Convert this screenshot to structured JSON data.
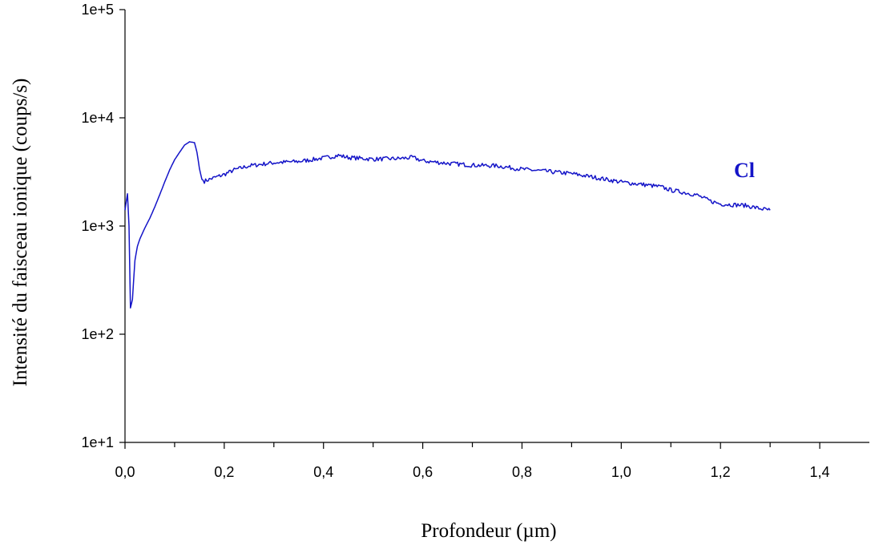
{
  "chart_data": {
    "type": "line",
    "title": "",
    "xlabel": "Profondeur (µm)",
    "ylabel": "Intensité du faisceau ionique (coups/s)",
    "x_scale": "linear",
    "y_scale": "log",
    "xlim": [
      0.0,
      1.5
    ],
    "ylim": [
      10,
      100000
    ],
    "x_ticks": [
      0.0,
      0.2,
      0.4,
      0.6,
      0.8,
      1.0,
      1.2,
      1.4
    ],
    "x_tick_labels": [
      "0,0",
      "0,2",
      "0,4",
      "0,6",
      "0,8",
      "1,0",
      "1,2",
      "1,4"
    ],
    "y_ticks": [
      10,
      100,
      1000,
      10000,
      100000
    ],
    "y_tick_labels": [
      "1e+1",
      "1e+2",
      "1e+3",
      "1e+4",
      "1e+5"
    ],
    "grid": false,
    "series": [
      {
        "name": "Cl",
        "color": "#1414c8",
        "points": [
          [
            0.0,
            1400
          ],
          [
            0.005,
            1990
          ],
          [
            0.008,
            1000
          ],
          [
            0.011,
            175
          ],
          [
            0.015,
            210
          ],
          [
            0.02,
            480
          ],
          [
            0.025,
            650
          ],
          [
            0.03,
            760
          ],
          [
            0.04,
            960
          ],
          [
            0.05,
            1180
          ],
          [
            0.06,
            1500
          ],
          [
            0.07,
            1950
          ],
          [
            0.08,
            2550
          ],
          [
            0.09,
            3300
          ],
          [
            0.1,
            4100
          ],
          [
            0.11,
            4800
          ],
          [
            0.12,
            5600
          ],
          [
            0.13,
            6000
          ],
          [
            0.14,
            5900
          ],
          [
            0.145,
            4800
          ],
          [
            0.15,
            3400
          ],
          [
            0.155,
            2700
          ],
          [
            0.16,
            2600
          ],
          [
            0.18,
            2800
          ],
          [
            0.2,
            3000
          ],
          [
            0.22,
            3300
          ],
          [
            0.25,
            3600
          ],
          [
            0.3,
            3850
          ],
          [
            0.35,
            3950
          ],
          [
            0.4,
            4250
          ],
          [
            0.43,
            4500
          ],
          [
            0.45,
            4300
          ],
          [
            0.5,
            4150
          ],
          [
            0.55,
            4200
          ],
          [
            0.58,
            4300
          ],
          [
            0.6,
            4000
          ],
          [
            0.65,
            3800
          ],
          [
            0.7,
            3650
          ],
          [
            0.75,
            3600
          ],
          [
            0.8,
            3350
          ],
          [
            0.85,
            3200
          ],
          [
            0.9,
            3050
          ],
          [
            0.95,
            2800
          ],
          [
            1.0,
            2550
          ],
          [
            1.05,
            2400
          ],
          [
            1.08,
            2300
          ],
          [
            1.1,
            2150
          ],
          [
            1.15,
            1950
          ],
          [
            1.18,
            1700
          ],
          [
            1.2,
            1600
          ],
          [
            1.25,
            1550
          ],
          [
            1.28,
            1450
          ],
          [
            1.3,
            1400
          ]
        ]
      }
    ],
    "annotations": [
      {
        "text": "Cl",
        "x": 1.24,
        "y": 2600
      }
    ]
  }
}
